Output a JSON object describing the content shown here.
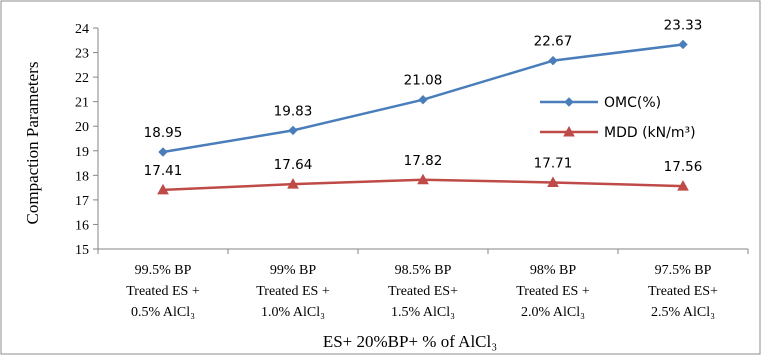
{
  "chart_data": {
    "type": "line",
    "title": "",
    "xlabel": "ES+ 20%BP+ % of AlCl₃",
    "ylabel": "Compaction Parameters",
    "ylim": [
      15,
      24
    ],
    "yticks": [
      15,
      16,
      17,
      18,
      19,
      20,
      21,
      22,
      23,
      24
    ],
    "grid": false,
    "legend_position": "right",
    "categories": [
      [
        "99.5% BP",
        "Treated ES +",
        "0.5%  AlCl₃"
      ],
      [
        "99% BP",
        "Treated ES +",
        "1.0%  AlCl₃"
      ],
      [
        "98.5% BP",
        "Treated ES+",
        "1.5%  AlCl₃"
      ],
      [
        "98% BP",
        "Treated ES +",
        "2.0%  AlCl₃"
      ],
      [
        "97.5% BP",
        "Treated ES+",
        "2.5% AlCl₃"
      ]
    ],
    "series": [
      {
        "name": "OMC(%)",
        "values": [
          18.95,
          19.83,
          21.08,
          22.67,
          23.33
        ],
        "labels": [
          "18.95",
          "19.83",
          "21.08",
          "22.67",
          "23.33"
        ],
        "color": "#4a7ebb",
        "marker": "diamond"
      },
      {
        "name": "MDD (kN/m³)",
        "values": [
          17.41,
          17.64,
          17.82,
          17.71,
          17.56
        ],
        "labels": [
          "17.41",
          "17.64",
          "17.82",
          "17.71",
          "17.56"
        ],
        "color": "#be4b48",
        "marker": "triangle"
      }
    ]
  }
}
